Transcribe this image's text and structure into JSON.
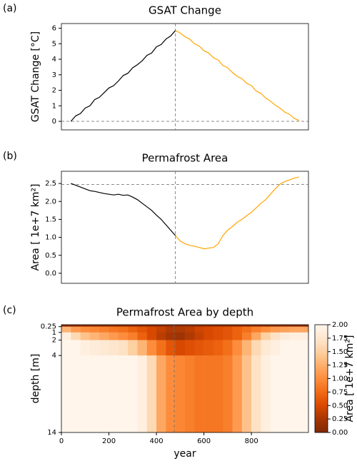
{
  "chart_data": [
    {
      "type": "line",
      "panel_label": "(a)",
      "title": "GSAT Change",
      "ylabel": "GSAT Change [°C]",
      "x": [
        0,
        20,
        40,
        60,
        80,
        100,
        120,
        140,
        160,
        180,
        200,
        220,
        240,
        260,
        280,
        300,
        320,
        340,
        360,
        380,
        400,
        420,
        440,
        460,
        480,
        500,
        520,
        540,
        560,
        580,
        600,
        620,
        640,
        660,
        680,
        700,
        720,
        740,
        760,
        780,
        800,
        820,
        840,
        860,
        880,
        900,
        920,
        940,
        960
      ],
      "series": [
        {
          "color": "#000000",
          "values": [
            0.0,
            0.35,
            0.5,
            0.85,
            1.0,
            1.4,
            1.55,
            1.85,
            2.15,
            2.3,
            2.6,
            2.95,
            3.1,
            3.45,
            3.65,
            3.9,
            4.25,
            4.4,
            4.8,
            4.95,
            5.3,
            5.5,
            5.85,
            null,
            null,
            null,
            null,
            null,
            null,
            null,
            null,
            null,
            null,
            null,
            null,
            null,
            null,
            null,
            null,
            null,
            null,
            null,
            null,
            null,
            null,
            null,
            null,
            null,
            null
          ]
        },
        {
          "color": "#ffa500",
          "values": [
            null,
            null,
            null,
            null,
            null,
            null,
            null,
            null,
            null,
            null,
            null,
            null,
            null,
            null,
            null,
            null,
            null,
            null,
            null,
            null,
            null,
            null,
            5.85,
            5.7,
            5.45,
            5.3,
            5.0,
            4.85,
            4.55,
            4.4,
            4.1,
            3.95,
            3.6,
            3.45,
            3.15,
            2.9,
            2.75,
            2.45,
            2.3,
            1.95,
            1.8,
            1.5,
            1.3,
            1.05,
            0.85,
            0.6,
            0.45,
            0.2,
            0.05
          ]
        }
      ],
      "xlim": [
        -40,
        1000
      ],
      "ylim": [
        -0.55,
        6.3
      ],
      "yticks": [
        0,
        1,
        2,
        3,
        4,
        5,
        6
      ],
      "hline": 0,
      "vline": 440
    },
    {
      "type": "line",
      "panel_label": "(b)",
      "title": "Permafrost Area",
      "ylabel": "Area [ 1e+7 km²]",
      "x": [
        0,
        20,
        40,
        60,
        80,
        100,
        120,
        140,
        160,
        180,
        200,
        220,
        240,
        260,
        280,
        300,
        320,
        340,
        360,
        380,
        400,
        420,
        440,
        460,
        480,
        500,
        520,
        540,
        560,
        580,
        600,
        620,
        640,
        660,
        680,
        700,
        720,
        740,
        760,
        780,
        800,
        820,
        840,
        860,
        880,
        900,
        920,
        940,
        960
      ],
      "series": [
        {
          "color": "#000000",
          "values": [
            2.5,
            2.45,
            2.4,
            2.35,
            2.3,
            2.28,
            2.25,
            2.22,
            2.2,
            2.18,
            2.2,
            2.17,
            2.18,
            2.12,
            2.05,
            1.95,
            1.85,
            1.75,
            1.62,
            1.5,
            1.35,
            1.2,
            1.05,
            null,
            null,
            null,
            null,
            null,
            null,
            null,
            null,
            null,
            null,
            null,
            null,
            null,
            null,
            null,
            null,
            null,
            null,
            null,
            null,
            null,
            null,
            null,
            null,
            null,
            null
          ]
        },
        {
          "color": "#ffa500",
          "values": [
            null,
            null,
            null,
            null,
            null,
            null,
            null,
            null,
            null,
            null,
            null,
            null,
            null,
            null,
            null,
            null,
            null,
            null,
            null,
            null,
            null,
            null,
            1.05,
            0.9,
            0.82,
            0.78,
            0.75,
            0.72,
            0.68,
            0.7,
            0.72,
            0.82,
            1.05,
            1.2,
            1.3,
            1.42,
            1.5,
            1.6,
            1.7,
            1.82,
            1.95,
            2.05,
            2.2,
            2.35,
            2.48,
            2.55,
            2.6,
            2.65,
            2.68
          ]
        }
      ],
      "xlim": [
        -40,
        1000
      ],
      "ylim": [
        -0.28,
        2.84
      ],
      "yticks": [
        {
          "value": 0,
          "label": "0.0"
        },
        {
          "value": 0.5,
          "label": "0.5"
        },
        {
          "value": 1,
          "label": "1.0"
        },
        {
          "value": 1.5,
          "label": "1.5"
        },
        {
          "value": 2,
          "label": "2.0"
        },
        {
          "value": 2.5,
          "label": "2.5"
        }
      ],
      "hline": 2.47,
      "vline": 440
    },
    {
      "type": "heatmap",
      "panel_label": "(c)",
      "title": "Permafrost Area by depth",
      "ylabel": "depth [m]",
      "xlabel": "year",
      "x_bins": [
        0,
        40,
        80,
        120,
        160,
        200,
        240,
        280,
        320,
        360,
        400,
        440,
        480,
        520,
        560,
        600,
        640,
        680,
        720,
        760,
        800,
        840,
        880,
        920,
        960,
        1000,
        1040
      ],
      "depth_bins": [
        0,
        0.25,
        1,
        2,
        4,
        14
      ],
      "z": [
        [
          0.1,
          0.1,
          0.1,
          0.1,
          0.1,
          0.1,
          0.1,
          0.1,
          0.1,
          0.1,
          0.1,
          0.1,
          0.1,
          0.1,
          0.1,
          0.1,
          0.1,
          0.1,
          0.1,
          0.1,
          0.1,
          0.1,
          0.1,
          0.1,
          0.1,
          0.1
        ],
        [
          1.3,
          1.1,
          1.0,
          0.95,
          0.9,
          0.85,
          0.8,
          0.7,
          0.6,
          0.5,
          0.4,
          0.3,
          0.3,
          0.35,
          0.45,
          0.5,
          0.55,
          0.6,
          0.7,
          0.8,
          0.9,
          1.0,
          1.1,
          1.15,
          1.2,
          1.2
        ],
        [
          1.9,
          1.6,
          1.4,
          1.3,
          1.2,
          1.1,
          1.0,
          0.9,
          0.7,
          0.5,
          0.35,
          0.25,
          0.2,
          0.3,
          0.4,
          0.5,
          0.55,
          0.6,
          0.7,
          0.9,
          1.2,
          1.5,
          1.7,
          1.85,
          1.9,
          1.9
        ],
        [
          2.0,
          2.0,
          1.9,
          1.85,
          1.8,
          1.75,
          1.7,
          1.5,
          1.3,
          1.0,
          0.8,
          0.6,
          0.5,
          0.55,
          0.6,
          0.65,
          0.7,
          0.8,
          1.0,
          1.3,
          1.6,
          1.8,
          1.9,
          2.0,
          2.0,
          2.0
        ],
        [
          2.0,
          2.0,
          2.0,
          2.0,
          2.0,
          2.0,
          2.0,
          2.0,
          1.9,
          1.6,
          1.2,
          1.0,
          0.95,
          0.9,
          0.85,
          0.85,
          0.85,
          0.9,
          1.1,
          1.4,
          1.7,
          1.9,
          2.0,
          2.0,
          2.0,
          2.0
        ]
      ],
      "xlim": [
        0,
        1040
      ],
      "ylim": [
        14,
        0
      ],
      "xticks": [
        0,
        200,
        400,
        600,
        800
      ],
      "yticks": [
        0.25,
        1,
        2,
        4,
        14
      ],
      "vline": 475,
      "colormap": [
        "#7f2704",
        "#a63603",
        "#d94801",
        "#f16913",
        "#fd8d3c",
        "#fdae6b",
        "#fdd0a2",
        "#fee6ce",
        "#fff5eb"
      ],
      "colorbar": {
        "label": "Area [ 1e+7 km²]",
        "lim": [
          0,
          2
        ],
        "ticks": [
          {
            "value": 0,
            "label": "0.00"
          },
          {
            "value": 0.25,
            "label": "0.25"
          },
          {
            "value": 0.5,
            "label": "0.50"
          },
          {
            "value": 0.75,
            "label": "0.75"
          },
          {
            "value": 1,
            "label": "1.00"
          },
          {
            "value": 1.25,
            "label": "1.25"
          },
          {
            "value": 1.5,
            "label": "1.50"
          },
          {
            "value": 1.75,
            "label": "1.75"
          },
          {
            "value": 2,
            "label": "2.00"
          }
        ]
      }
    }
  ]
}
